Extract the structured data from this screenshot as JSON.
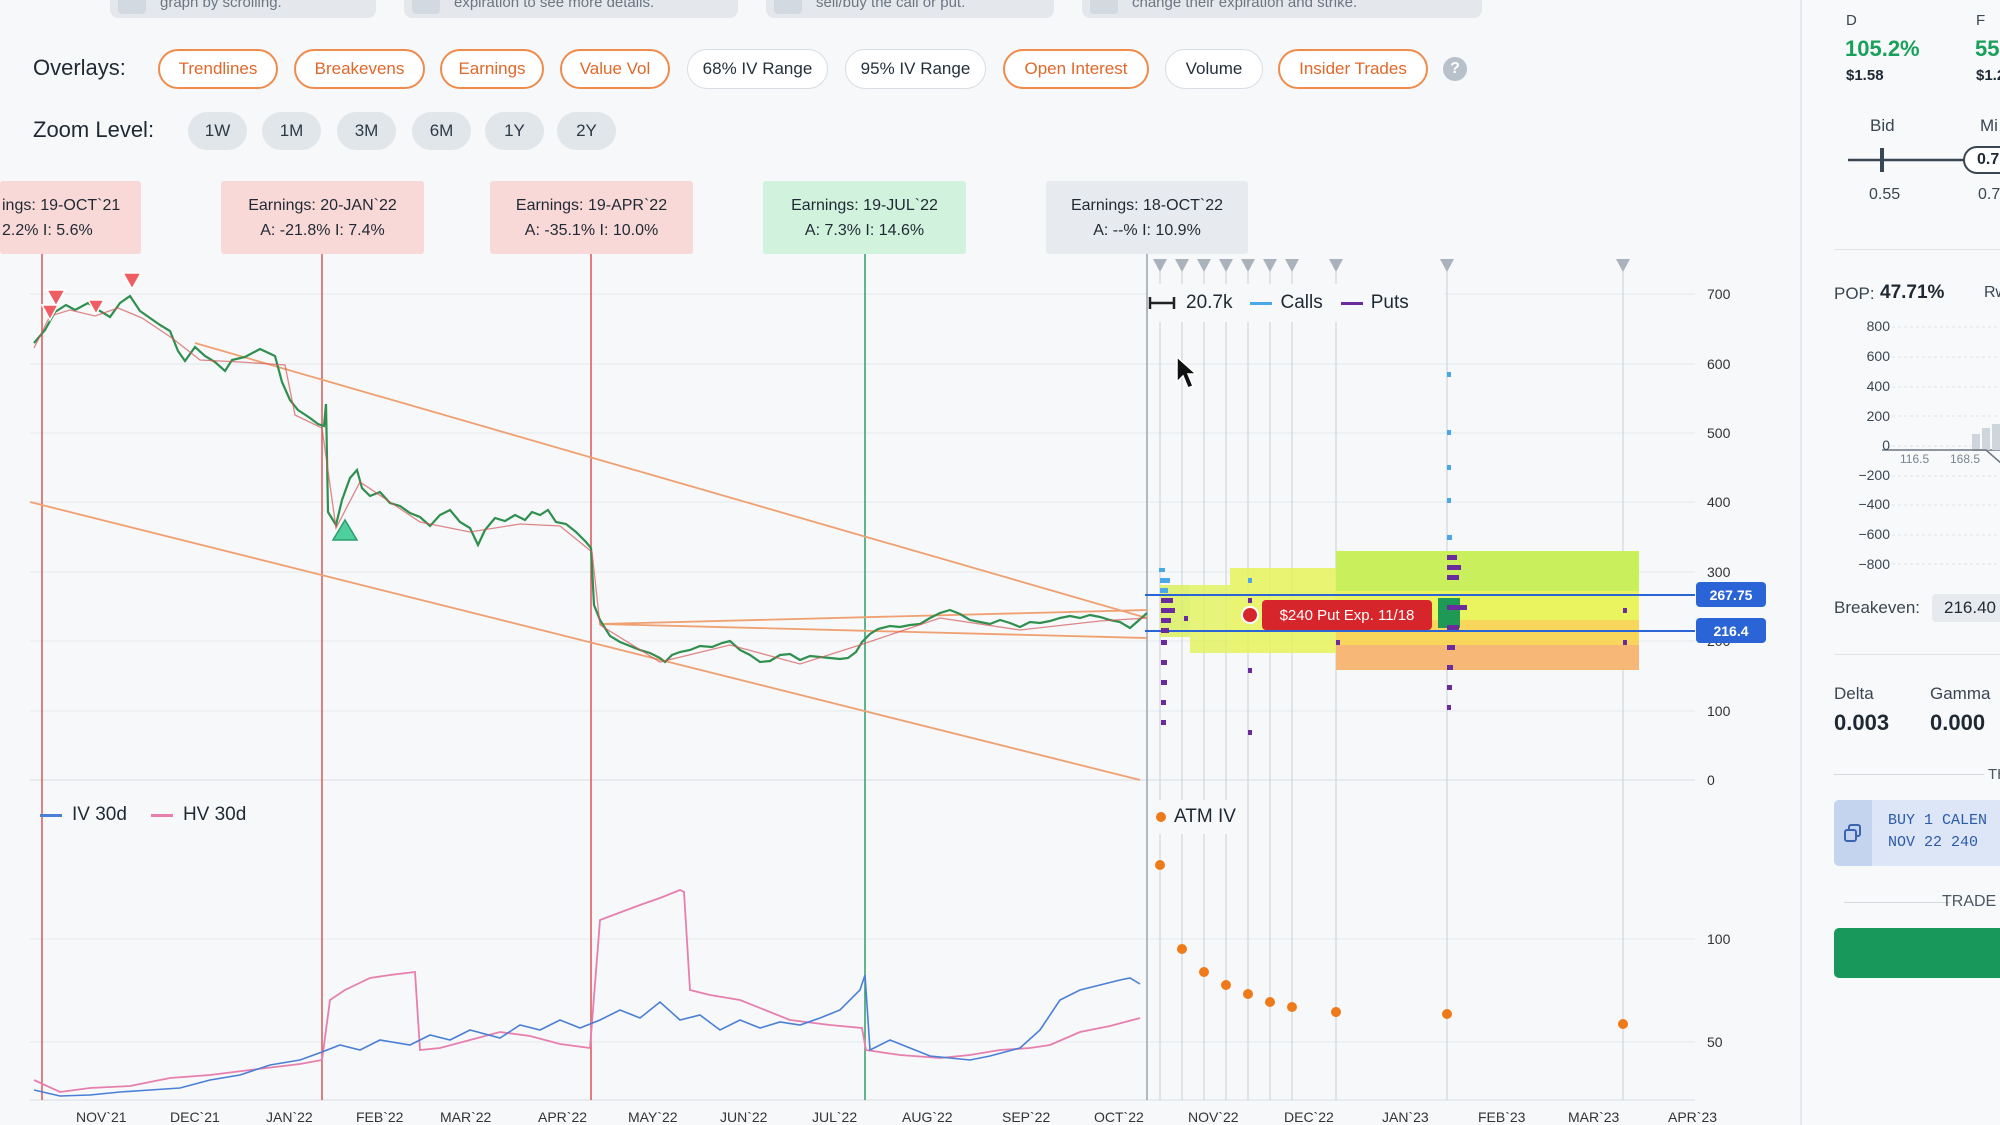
{
  "hints": [
    "graph by scrolling.",
    "expiration to see more details.",
    "sell/buy the call or put.",
    "change their expiration and strike."
  ],
  "overlays": {
    "label": "Overlays:",
    "chips": [
      {
        "label": "Trendlines",
        "style": "orange"
      },
      {
        "label": "Breakevens",
        "style": "orange"
      },
      {
        "label": "Earnings",
        "style": "orange"
      },
      {
        "label": "Value Vol",
        "style": "orange"
      },
      {
        "label": "68% IV Range",
        "style": "gray"
      },
      {
        "label": "95% IV Range",
        "style": "gray"
      },
      {
        "label": "Open Interest",
        "style": "orange"
      },
      {
        "label": "Volume",
        "style": "gray"
      },
      {
        "label": "Insider Trades",
        "style": "orange"
      }
    ],
    "help": "?"
  },
  "zoom": {
    "label": "Zoom Level:",
    "levels": [
      "1W",
      "1M",
      "3M",
      "6M",
      "1Y",
      "2Y"
    ]
  },
  "earnings": [
    {
      "line1": "ings: 19-OCT`21",
      "line2": "2.2%   I: 5.6%",
      "tone": "red"
    },
    {
      "line1": "Earnings: 20-JAN`22",
      "line2": "A: -21.8%   I: 7.4%",
      "tone": "red"
    },
    {
      "line1": "Earnings: 19-APR`22",
      "line2": "A: -35.1%   I: 10.0%",
      "tone": "red"
    },
    {
      "line1": "Earnings: 19-JUL`22",
      "line2": "A: 7.3%   I: 14.6%",
      "tone": "green"
    },
    {
      "line1": "Earnings: 18-OCT`22",
      "line2": "A: --%   I: 10.9%",
      "tone": "gray"
    }
  ],
  "price_axis": [
    "700",
    "600",
    "500",
    "400",
    "300",
    "200",
    "100",
    "0"
  ],
  "iv_axis": [
    "100",
    "50"
  ],
  "months": [
    "NOV`21",
    "DEC`21",
    "JAN`22",
    "FEB`22",
    "MAR`22",
    "APR`22",
    "MAY`22",
    "JUN`22",
    "JUL`22",
    "AUG`22",
    "SEP`22",
    "OCT`22",
    "NOV`22",
    "DEC`22",
    "JAN`23",
    "FEB`23",
    "MAR`23",
    "APR`23"
  ],
  "oi_legend": {
    "volume": "20.7k",
    "calls": "Calls",
    "puts": "Puts"
  },
  "iv_legend": {
    "iv": "IV 30d",
    "hv": "HV 30d",
    "atm": "ATM IV"
  },
  "price_tags": {
    "upper": "267.75",
    "lower": "216.4"
  },
  "position_label": "$240 Put Exp. 11/18",
  "colors": {
    "accent_orange": "#ef8b4c",
    "calls": "#4aa8e8",
    "puts": "#6a2c9c",
    "iv": "#4a7fd6",
    "hv": "#e77fae",
    "atm": "#ef7a1a",
    "buy": "#18985a"
  },
  "right_panel": {
    "col_d": "D",
    "col_f": "F",
    "d_pct": "105.2%",
    "f_pct": "55.",
    "d_price": "$1.58",
    "f_price": "$1.2",
    "bid_label": "Bid",
    "mid_label": "Mi",
    "bid_value": "0.55",
    "mid_value": "0.7",
    "mid_slider": "0.7",
    "pop_label": "POP:",
    "pop_value": "47.71%",
    "rw": "Rw",
    "pnl_ticks": [
      "800",
      "600",
      "400",
      "200",
      "0",
      "−200",
      "−400",
      "−600",
      "−800"
    ],
    "pnl_xlabels": [
      "116.5",
      "168.5"
    ],
    "breakeven_label": "Breakeven:",
    "breakeven_value": "216.40",
    "delta_label": "Delta",
    "delta_value": "0.003",
    "gamma_label": "Gamma",
    "gamma_value": "0.000",
    "section_th": "TH",
    "trade_line1": "BUY 1 CALEN",
    "trade_line2": "NOV 22 240",
    "trade_label": "TRADE"
  }
}
